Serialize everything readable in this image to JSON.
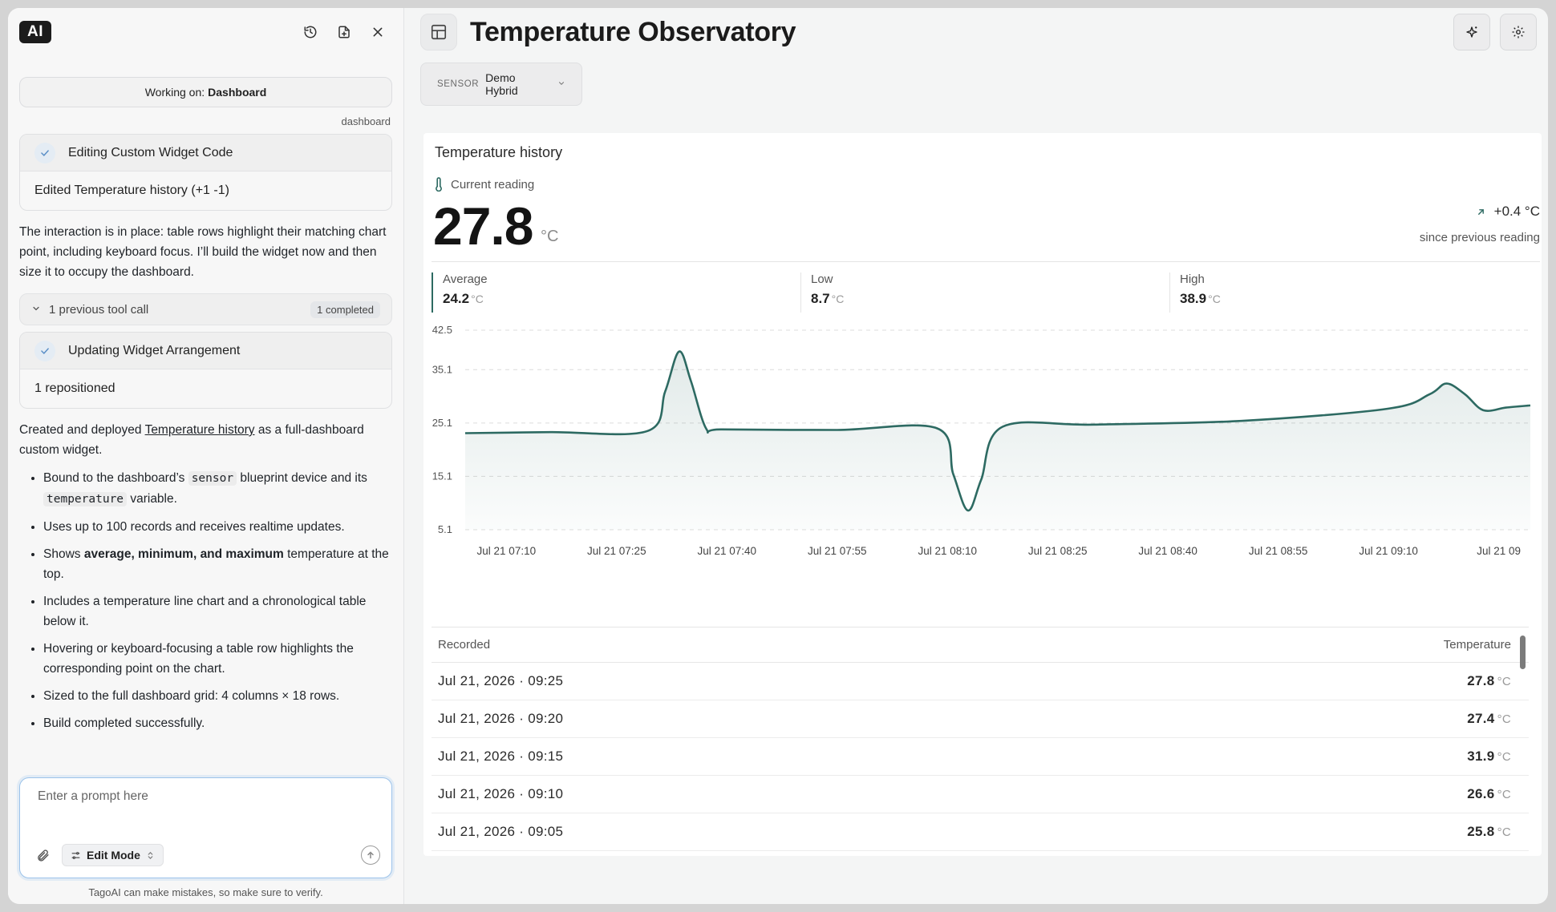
{
  "ai_panel": {
    "logo": "AI",
    "working_on_prefix": "Working on:",
    "working_on_target": "Dashboard",
    "context_tag": "dashboard",
    "tool_1": {
      "title": "Editing Custom Widget Code",
      "result": "Edited Temperature history (+1 -1)"
    },
    "message_1": "The interaction is in place: table rows highlight their matching chart point, including keyboard focus. I’ll build the widget now and then size it to occupy the dashboard.",
    "previous_calls": {
      "label": "1 previous tool call",
      "badge": "1 completed"
    },
    "tool_2": {
      "title": "Updating Widget Arrangement",
      "result": "1 repositioned"
    },
    "message_2": {
      "prefix": "Created and deployed ",
      "link": "Temperature history",
      "suffix": " as a full-dashboard custom widget."
    },
    "bullets": {
      "b1_pre": "Bound to the dashboard’s ",
      "b1_code1": "sensor",
      "b1_mid": " blueprint device and its ",
      "b1_code2": "temperature",
      "b1_post": " variable.",
      "b2": "Uses up to 100 records and receives realtime updates.",
      "b3_pre": "Shows ",
      "b3_bold": "average, minimum, and maximum",
      "b3_post": " temperature at the top.",
      "b4": "Includes a temperature line chart and a chronological table below it.",
      "b5": "Hovering or keyboard-focusing a table row highlights the corresponding point on the chart.",
      "b6": "Sized to the full dashboard grid: 4 columns × 18 rows.",
      "b7": "Build completed successfully."
    },
    "prompt": {
      "placeholder": "Enter a prompt here",
      "mode_label": "Edit Mode"
    },
    "disclaimer": "TagoAI can make mistakes, so make sure to verify."
  },
  "dashboard": {
    "title": "Temperature Observatory",
    "sensor_label": "SENSOR",
    "sensor_value": "Demo Hybrid",
    "widget": {
      "title": "Temperature history",
      "current_label": "Current reading",
      "current_value": "27.8",
      "unit": "°C",
      "delta": "+0.4 °C",
      "delta_sub": "since previous reading",
      "stats": [
        {
          "label": "Average",
          "value": "24.2",
          "unit": "°C"
        },
        {
          "label": "Low",
          "value": "8.7",
          "unit": "°C"
        },
        {
          "label": "High",
          "value": "38.9",
          "unit": "°C"
        }
      ],
      "table": {
        "col_recorded": "Recorded",
        "col_temperature": "Temperature",
        "rows": [
          {
            "time": "Jul 21, 2026 · 09:25",
            "value": "27.8",
            "unit": "°C"
          },
          {
            "time": "Jul 21, 2026 · 09:20",
            "value": "27.4",
            "unit": "°C"
          },
          {
            "time": "Jul 21, 2026 · 09:15",
            "value": "31.9",
            "unit": "°C"
          },
          {
            "time": "Jul 21, 2026 · 09:10",
            "value": "26.6",
            "unit": "°C"
          },
          {
            "time": "Jul 21, 2026 · 09:05",
            "value": "25.8",
            "unit": "°C"
          }
        ]
      }
    }
  },
  "chart_data": {
    "type": "area",
    "y_ticks": [
      "42.5",
      "35.1",
      "25.1",
      "15.1",
      "5.1"
    ],
    "y_tick_values": [
      42.5,
      35.1,
      25.1,
      15.1,
      5.1
    ],
    "x_ticks": [
      "Jul 21 07:10",
      "Jul 21 07:25",
      "Jul 21 07:40",
      "Jul 21 07:55",
      "Jul 21 08:10",
      "Jul 21 08:25",
      "Jul 21 08:40",
      "Jul 21 08:55",
      "Jul 21 09:10",
      "Jul 21 09"
    ],
    "x_tick_minutes": [
      430,
      445,
      460,
      475,
      490,
      505,
      520,
      535,
      550,
      565
    ],
    "ylim": [
      5.1,
      42.5
    ],
    "xlim": [
      424.4,
      569.3
    ],
    "grid": true,
    "line_color": "#2d6a62",
    "series": [
      {
        "x": [
          424.4,
          436,
          449.2,
          451.6,
          453.5,
          455.1,
          457.2,
          459.3,
          475,
          488.6,
          490.8,
          492.8,
          494.6,
          497.5,
          510,
          530,
          550,
          555.6,
          557.9,
          560.4,
          562.9,
          566,
          569.3
        ],
        "y": [
          23.2,
          23.4,
          23.6,
          31,
          38.5,
          33,
          24,
          23.9,
          23.8,
          24.1,
          15.5,
          8.7,
          14.5,
          24.4,
          24.8,
          25.5,
          27.8,
          30.5,
          32.5,
          30.5,
          27.5,
          28,
          28.4
        ]
      }
    ]
  }
}
